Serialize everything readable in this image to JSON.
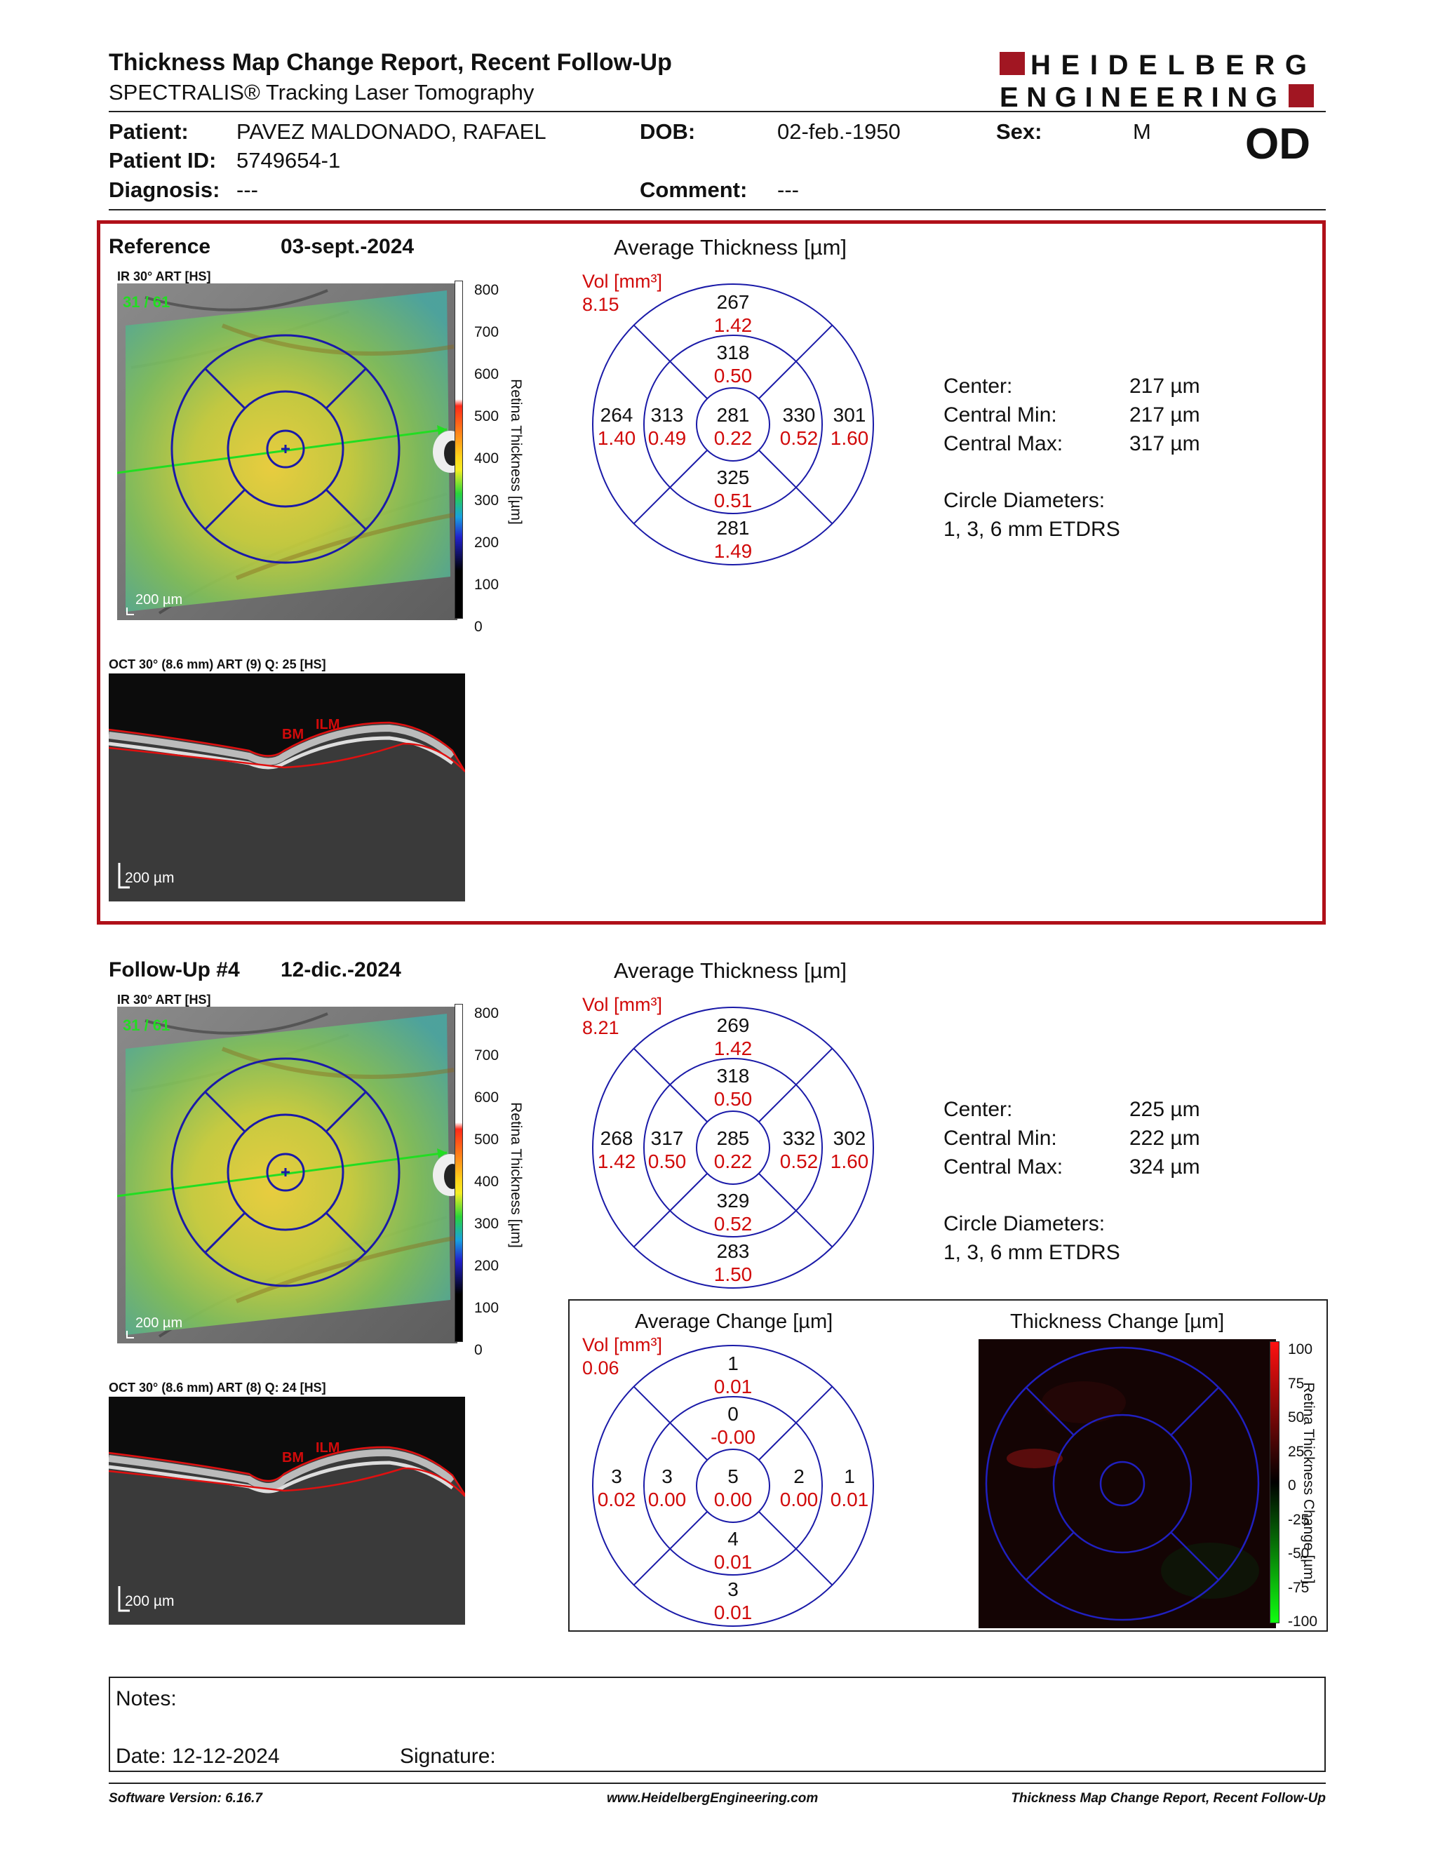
{
  "header": {
    "title": "Thickness Map Change Report, Recent Follow-Up",
    "subtitle": "SPECTRALIS® Tracking Laser Tomography",
    "logo_line1": "HEIDELBERG",
    "logo_line2": "ENGINEERING"
  },
  "patient": {
    "patient_label": "Patient:",
    "patient": "PAVEZ MALDONADO, RAFAEL",
    "dob_label": "DOB:",
    "dob": "02-feb.-1950",
    "sex_label": "Sex:",
    "sex": "M",
    "id_label": "Patient ID:",
    "id": "5749654-1",
    "diagnosis_label": "Diagnosis:",
    "diagnosis": "---",
    "comment_label": "Comment:",
    "comment": "---",
    "eye": "OD"
  },
  "reference": {
    "label": "Reference",
    "date": "03-sept.-2024",
    "fundus_caption": "IR 30° ART [HS]",
    "frame": "31 / 61",
    "scale": "200 µm",
    "oct_caption": "OCT 30° (8.6 mm) ART (9) Q: 25 [HS]",
    "oct_scale": "200 µm",
    "avg_title": "Average Thickness [µm]",
    "vol_label": "Vol [mm³]",
    "vol_total": "8.15",
    "grid": {
      "center": {
        "t": "281",
        "v": "0.22"
      },
      "inner_sup": {
        "t": "318",
        "v": "0.50"
      },
      "inner_nas": {
        "t": "330",
        "v": "0.52"
      },
      "inner_inf": {
        "t": "325",
        "v": "0.51"
      },
      "inner_tem": {
        "t": "313",
        "v": "0.49"
      },
      "outer_sup": {
        "t": "267",
        "v": "1.42"
      },
      "outer_nas": {
        "t": "301",
        "v": "1.60"
      },
      "outer_inf": {
        "t": "281",
        "v": "1.49"
      },
      "outer_tem": {
        "t": "264",
        "v": "1.40"
      }
    },
    "stats": {
      "center_label": "Center:",
      "center": "217 µm",
      "min_label": "Central Min:",
      "min": "217 µm",
      "max_label": "Central Max:",
      "max": "317 µm",
      "circles_label": "Circle Diameters:",
      "circles": "1, 3, 6 mm ETDRS"
    }
  },
  "followup": {
    "label": "Follow-Up #4",
    "date": "12-dic.-2024",
    "fundus_caption": "IR 30° ART [HS]",
    "frame": "31 / 61",
    "scale": "200 µm",
    "oct_caption": "OCT 30° (8.6 mm) ART (8) Q: 24 [HS]",
    "oct_scale": "200 µm",
    "avg_title": "Average Thickness [µm]",
    "vol_label": "Vol [mm³]",
    "vol_total": "8.21",
    "grid": {
      "center": {
        "t": "285",
        "v": "0.22"
      },
      "inner_sup": {
        "t": "318",
        "v": "0.50"
      },
      "inner_nas": {
        "t": "332",
        "v": "0.52"
      },
      "inner_inf": {
        "t": "329",
        "v": "0.52"
      },
      "inner_tem": {
        "t": "317",
        "v": "0.50"
      },
      "outer_sup": {
        "t": "269",
        "v": "1.42"
      },
      "outer_nas": {
        "t": "302",
        "v": "1.60"
      },
      "outer_inf": {
        "t": "283",
        "v": "1.50"
      },
      "outer_tem": {
        "t": "268",
        "v": "1.42"
      }
    },
    "stats": {
      "center_label": "Center:",
      "center": "225 µm",
      "min_label": "Central Min:",
      "min": "222 µm",
      "max_label": "Central Max:",
      "max": "324 µm",
      "circles_label": "Circle Diameters:",
      "circles": "1, 3, 6 mm ETDRS"
    }
  },
  "change": {
    "avg_title": "Average Change [µm]",
    "vol_label": "Vol [mm³]",
    "vol_total": "0.06",
    "grid": {
      "center": {
        "t": "5",
        "v": "0.00"
      },
      "inner_sup": {
        "t": "0",
        "v": "-0.00"
      },
      "inner_nas": {
        "t": "2",
        "v": "0.00"
      },
      "inner_inf": {
        "t": "4",
        "v": "0.01"
      },
      "inner_tem": {
        "t": "3",
        "v": "0.00"
      },
      "outer_sup": {
        "t": "1",
        "v": "0.01"
      },
      "outer_nas": {
        "t": "1",
        "v": "0.01"
      },
      "outer_inf": {
        "t": "3",
        "v": "0.01"
      },
      "outer_tem": {
        "t": "3",
        "v": "0.02"
      }
    },
    "map_title": "Thickness Change [µm]",
    "scale_ticks": [
      "100",
      "75",
      "50",
      "25",
      "0",
      "-25",
      "-50",
      "-75",
      "-100"
    ],
    "scale_axis": "Retina Thickness Change [µm]"
  },
  "thickness_scale": {
    "ticks": [
      "800",
      "700",
      "600",
      "500",
      "400",
      "300",
      "200",
      "100",
      "0"
    ],
    "axis": "Retina Thickness [µm]"
  },
  "oct_labels": {
    "bm": "BM",
    "ilm": "ILM"
  },
  "notes": {
    "notes_label": "Notes:",
    "date_label": "Date:",
    "date": "12-12-2024",
    "signature_label": "Signature:"
  },
  "footer": {
    "software": "Software Version: 6.16.7",
    "website": "www.HeidelbergEngineering.com",
    "report": "Thickness Map Change Report, Recent Follow-Up"
  },
  "colors": {
    "red": "#d10a0a",
    "blue": "#1a1aa8",
    "frame_red": "#b01019"
  }
}
